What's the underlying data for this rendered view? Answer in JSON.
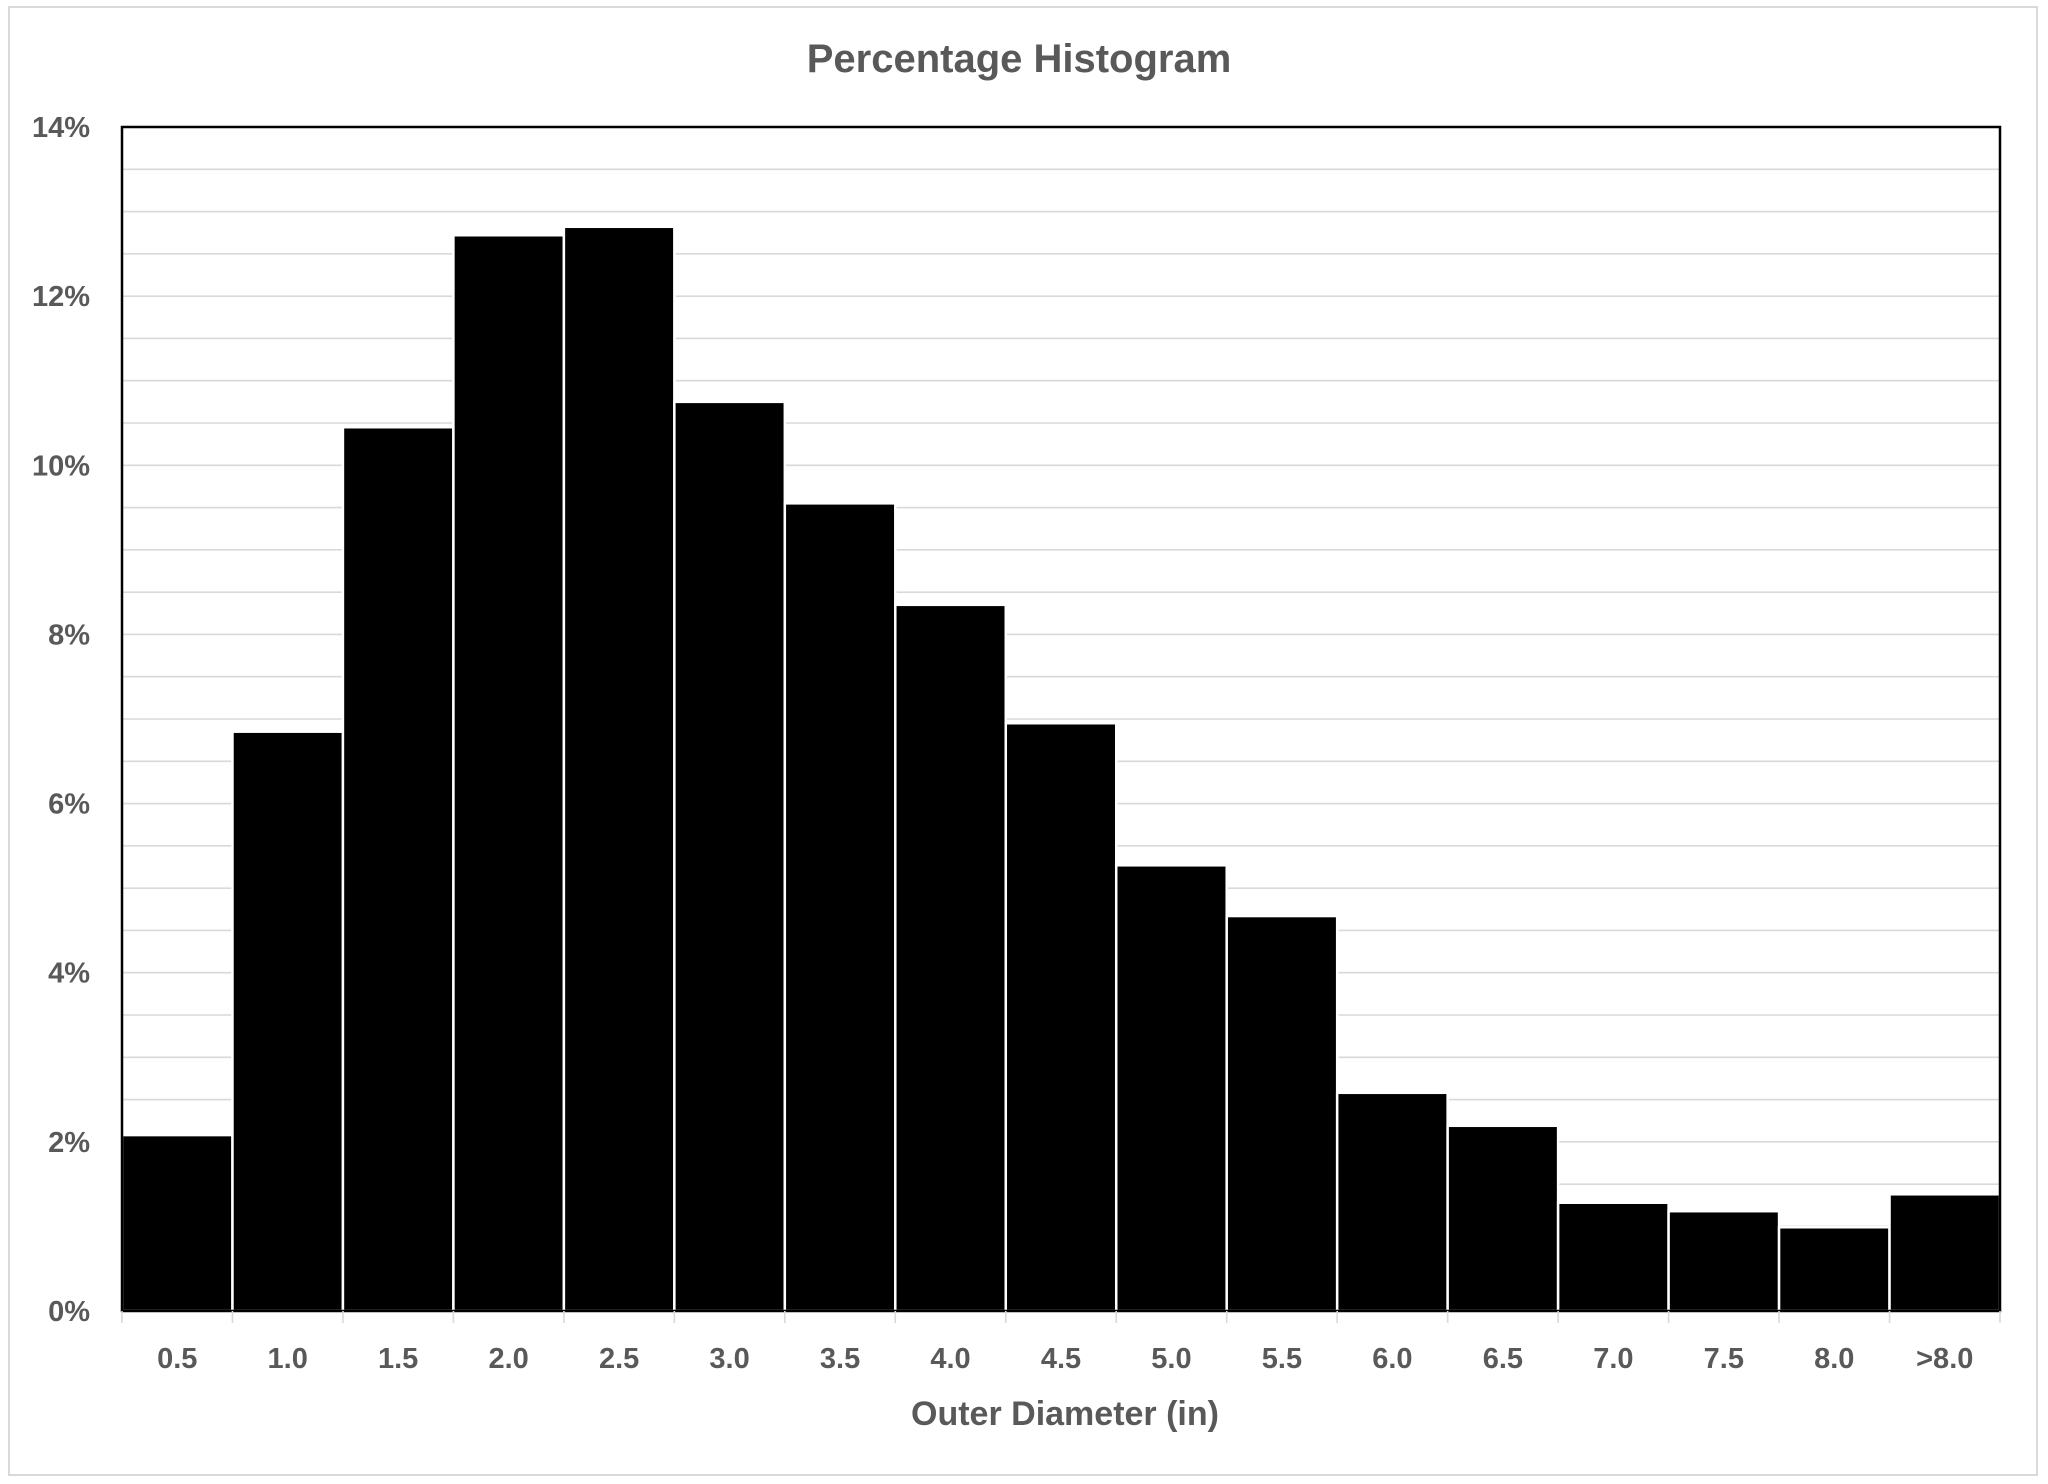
{
  "chart_data": {
    "type": "bar",
    "title": "Percentage Histogram",
    "xlabel": "Outer Diameter (in)",
    "ylabel": "",
    "categories": [
      "0.5",
      "1.0",
      "1.5",
      "2.0",
      "2.5",
      "3.0",
      "3.5",
      "4.0",
      "4.5",
      "5.0",
      "5.5",
      "6.0",
      "6.5",
      "7.0",
      "7.5",
      "8.0",
      ">8.0"
    ],
    "values": [
      2.08,
      6.85,
      10.45,
      12.72,
      12.82,
      10.75,
      9.55,
      8.35,
      6.95,
      5.27,
      4.67,
      2.58,
      2.19,
      1.28,
      1.18,
      0.99,
      1.38
    ],
    "ylim": [
      0,
      14
    ],
    "y_major_ticks": [
      0,
      2,
      4,
      6,
      8,
      10,
      12,
      14
    ],
    "y_tick_labels": [
      "0%",
      "2%",
      "4%",
      "6%",
      "8%",
      "10%",
      "12%",
      "14%"
    ],
    "y_minor_step": 0.5,
    "grid": true,
    "legend": "none",
    "bar_color": "#000000",
    "text_color": "#595959",
    "grid_color": "#d9d9d9"
  }
}
